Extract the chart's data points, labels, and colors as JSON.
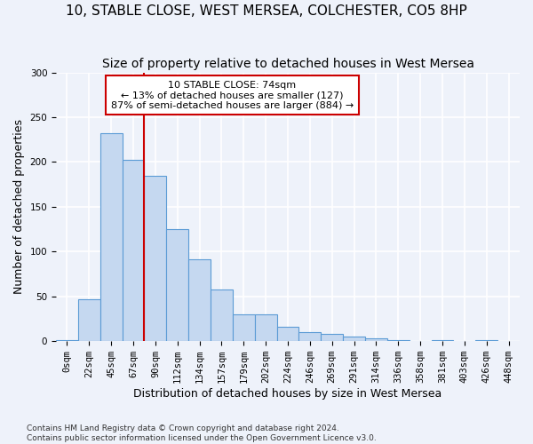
{
  "title": "10, STABLE CLOSE, WEST MERSEA, COLCHESTER, CO5 8HP",
  "subtitle": "Size of property relative to detached houses in West Mersea",
  "xlabel": "Distribution of detached houses by size in West Mersea",
  "ylabel": "Number of detached properties",
  "footer_line1": "Contains HM Land Registry data © Crown copyright and database right 2024.",
  "footer_line2": "Contains public sector information licensed under the Open Government Licence v3.0.",
  "bar_labels": [
    "0sqm",
    "22sqm",
    "45sqm",
    "67sqm",
    "90sqm",
    "112sqm",
    "134sqm",
    "157sqm",
    "179sqm",
    "202sqm",
    "224sqm",
    "246sqm",
    "269sqm",
    "291sqm",
    "314sqm",
    "336sqm",
    "358sqm",
    "381sqm",
    "403sqm",
    "426sqm",
    "448sqm"
  ],
  "bar_values": [
    1,
    47,
    232,
    202,
    185,
    125,
    91,
    58,
    30,
    30,
    16,
    10,
    8,
    5,
    3,
    1,
    0,
    1,
    0,
    1,
    0
  ],
  "bar_color": "#c5d8f0",
  "bar_edge_color": "#5b9bd5",
  "vline_x": 3.5,
  "vline_color": "#cc0000",
  "annotation_text": "10 STABLE CLOSE: 74sqm\n← 13% of detached houses are smaller (127)\n87% of semi-detached houses are larger (884) →",
  "annotation_box_color": "#ffffff",
  "annotation_box_edge": "#cc0000",
  "ylim": [
    0,
    300
  ],
  "yticks": [
    0,
    50,
    100,
    150,
    200,
    250,
    300
  ],
  "background_color": "#eef2fa",
  "axes_background": "#eef2fa",
  "grid_color": "#ffffff",
  "title_fontsize": 11,
  "subtitle_fontsize": 10,
  "label_fontsize": 9,
  "tick_fontsize": 7.5,
  "annot_fontsize": 8
}
